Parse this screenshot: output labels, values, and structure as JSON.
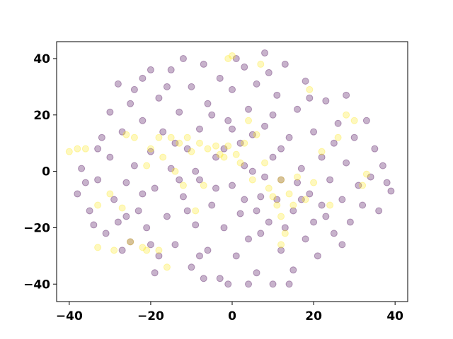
{
  "chart_data": {
    "type": "scatter",
    "xlim": [
      -43.1,
      43.1
    ],
    "ylim": [
      -46.2,
      46
    ],
    "xticks": [
      {
        "value": -40,
        "label": "−40"
      },
      {
        "value": -20,
        "label": "−20"
      },
      0,
      20,
      40
    ],
    "yticks": [
      {
        "value": -40,
        "label": "−40"
      },
      {
        "value": -20,
        "label": "−20"
      },
      0,
      20,
      40
    ],
    "grid": false,
    "series": [
      {
        "color": "#440154",
        "x": [
          -38,
          -37,
          -35,
          -34,
          -33,
          -32,
          -31,
          -30,
          -30,
          -29,
          -28,
          -28,
          -27,
          -26,
          -25,
          -25,
          -24,
          -23,
          -22,
          -22,
          -21,
          -20,
          -20,
          -19,
          -18,
          -18,
          -17,
          -16,
          -15,
          -15,
          -14,
          -13,
          -12,
          -12,
          -11,
          -10,
          -10,
          -9,
          -8,
          -8,
          -7,
          -6,
          -6,
          -5,
          -4,
          -3,
          -3,
          -2,
          -1,
          0,
          0,
          1,
          2,
          2,
          3,
          4,
          4,
          5,
          6,
          6,
          7,
          8,
          8,
          9,
          10,
          10,
          11,
          12,
          12,
          13,
          14,
          15,
          15,
          16,
          17,
          18,
          18,
          19,
          20,
          21,
          22,
          23,
          23,
          24,
          25,
          26,
          27,
          28,
          28,
          29,
          30,
          31,
          32,
          33,
          34,
          35,
          36,
          37,
          38,
          39,
          -36,
          -33,
          -27,
          -24,
          -19,
          -14,
          -11,
          -7,
          -4,
          -1,
          1,
          3,
          5,
          7,
          9,
          11,
          13,
          16,
          19,
          22,
          25,
          27,
          -16,
          -9,
          -2,
          6,
          14,
          20,
          -22,
          -5,
          3,
          10,
          -13,
          0,
          8,
          -26,
          17,
          -20,
          12,
          -8,
          4
        ],
        "y": [
          -8,
          1,
          -14,
          -19,
          -3,
          12,
          -22,
          21,
          5,
          -10,
          31,
          -18,
          14,
          -4,
          24,
          -25,
          2,
          -14,
          33,
          18,
          -20,
          36,
          7,
          -6,
          26,
          -30,
          14,
          -16,
          36,
          1,
          -26,
          21,
          -9,
          40,
          8,
          -34,
          30,
          -19,
          15,
          -3,
          38,
          -28,
          24,
          -12,
          5,
          33,
          -38,
          -20,
          18,
          -5,
          29,
          -30,
          10,
          -15,
          37,
          -24,
          22,
          0,
          -36,
          31,
          -9,
          16,
          42,
          -18,
          5,
          -40,
          27,
          -3,
          -28,
          38,
          12,
          -14,
          -35,
          22,
          1,
          -24,
          32,
          -8,
          14,
          -30,
          5,
          25,
          -16,
          -3,
          -22,
          17,
          -10,
          27,
          3,
          -18,
          12,
          -5,
          -12,
          18,
          -2,
          8,
          -14,
          2,
          -4,
          -7,
          -4,
          8,
          -28,
          29,
          -36,
          10,
          -14,
          -38,
          -6,
          -40,
          40,
          -10,
          13,
          -22,
          35,
          -10,
          -20,
          -4,
          26,
          -12,
          10,
          -26,
          30,
          0,
          8,
          -14,
          -40,
          -18,
          -8,
          20,
          2,
          20,
          -3,
          15,
          -2,
          -16,
          -10,
          -26,
          8,
          -30,
          -40
        ]
      },
      {
        "color": "#fde725",
        "x": [
          -40,
          -38,
          -36,
          -33,
          -30,
          -29,
          -27,
          -25,
          -24,
          -22,
          -21,
          -20,
          -18,
          -17,
          -16,
          -15,
          -14,
          -13,
          -12,
          -11,
          -10,
          -8,
          -7,
          -6,
          -4,
          -3,
          -2,
          -1,
          -1,
          0,
          1,
          2,
          3,
          4,
          5,
          6,
          8,
          9,
          10,
          11,
          12,
          12,
          13,
          14,
          15,
          16,
          18,
          19,
          20,
          22,
          26,
          28,
          30,
          32,
          33,
          24,
          12,
          -26,
          -9,
          7,
          -33,
          -18,
          -21
        ],
        "y": [
          7,
          8,
          8,
          -12,
          -8,
          -28,
          -13,
          -25,
          12,
          -27,
          -28,
          8,
          12,
          5,
          -34,
          12,
          0,
          10,
          -5,
          12,
          7,
          10,
          -5,
          8,
          9,
          6,
          5,
          9,
          40,
          41,
          6,
          3,
          10,
          18,
          -3,
          13,
          3,
          -6,
          -9,
          -12,
          -16,
          -3,
          -22,
          -8,
          -12,
          -2,
          -10,
          29,
          -4,
          7,
          12,
          20,
          18,
          -5,
          -1,
          -12,
          -26,
          13,
          -14,
          38,
          -27,
          -28,
          2
        ]
      }
    ]
  }
}
